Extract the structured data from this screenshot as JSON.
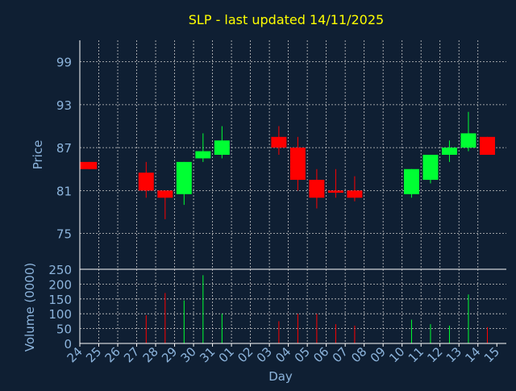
{
  "chart_data": {
    "type": "candlestick",
    "title": "SLP - last updated 14/11/2025",
    "xlabel": "Day",
    "ylabel_price": "Price",
    "ylabel_volume": "Volume (0000)",
    "grid": true,
    "price_ylim": [
      70,
      102
    ],
    "price_yticks": [
      75,
      81,
      87,
      93,
      99
    ],
    "volume_ylim": [
      0,
      250
    ],
    "volume_yticks": [
      0,
      50,
      100,
      150,
      200,
      250
    ],
    "x_labels": [
      "24",
      "25",
      "26",
      "27",
      "28",
      "29",
      "30",
      "31",
      "01",
      "02",
      "03",
      "04",
      "05",
      "06",
      "07",
      "08",
      "09",
      "10",
      "11",
      "12",
      "13",
      "14",
      "15"
    ],
    "candles": [
      {
        "day": "24",
        "open": 85.0,
        "close": 84.0,
        "high": 85.0,
        "low": 84.0,
        "volume": 0
      },
      {
        "day": "27",
        "open": 83.5,
        "close": 81.0,
        "high": 85.0,
        "low": 80.0,
        "volume": 95
      },
      {
        "day": "28",
        "open": 81.0,
        "close": 80.0,
        "high": 81.0,
        "low": 77.0,
        "volume": 170
      },
      {
        "day": "29",
        "open": 80.5,
        "close": 85.0,
        "high": 85.0,
        "low": 79.0,
        "volume": 145
      },
      {
        "day": "30",
        "open": 85.5,
        "close": 86.5,
        "high": 89.0,
        "low": 85.0,
        "volume": 230
      },
      {
        "day": "31",
        "open": 86.0,
        "close": 88.0,
        "high": 90.0,
        "low": 85.5,
        "volume": 100
      },
      {
        "day": "03",
        "open": 88.5,
        "close": 87.0,
        "high": 90.0,
        "low": 86.0,
        "volume": 75
      },
      {
        "day": "04",
        "open": 87.0,
        "close": 82.5,
        "high": 88.5,
        "low": 81.0,
        "volume": 100
      },
      {
        "day": "05",
        "open": 82.5,
        "close": 80.0,
        "high": 84.0,
        "low": 78.5,
        "volume": 100
      },
      {
        "day": "06",
        "open": 81.0,
        "close": 80.7,
        "high": 84.0,
        "low": 80.0,
        "volume": 65
      },
      {
        "day": "07",
        "open": 81.0,
        "close": 80.0,
        "high": 83.0,
        "low": 79.5,
        "volume": 60
      },
      {
        "day": "10",
        "open": 80.5,
        "close": 84.0,
        "high": 84.0,
        "low": 80.0,
        "volume": 80
      },
      {
        "day": "11",
        "open": 82.5,
        "close": 86.0,
        "high": 86.0,
        "low": 82.0,
        "volume": 65
      },
      {
        "day": "12",
        "open": 86.0,
        "close": 87.0,
        "high": 88.0,
        "low": 85.0,
        "volume": 60
      },
      {
        "day": "13",
        "open": 87.0,
        "close": 89.0,
        "high": 92.0,
        "low": 86.5,
        "volume": 165
      },
      {
        "day": "14",
        "open": 88.5,
        "close": 86.0,
        "high": 88.5,
        "low": 86.0,
        "volume": 55
      }
    ]
  },
  "colors": {
    "background": "#0f1f33",
    "title": "#ffff00",
    "axis_text": "#8cb4dc",
    "axis_line": "#ffffff",
    "grid": "#c8c8c8",
    "up": "#00ff33",
    "down": "#ff0000",
    "wick_up": "#00ff33",
    "wick_down": "#ff0000"
  }
}
